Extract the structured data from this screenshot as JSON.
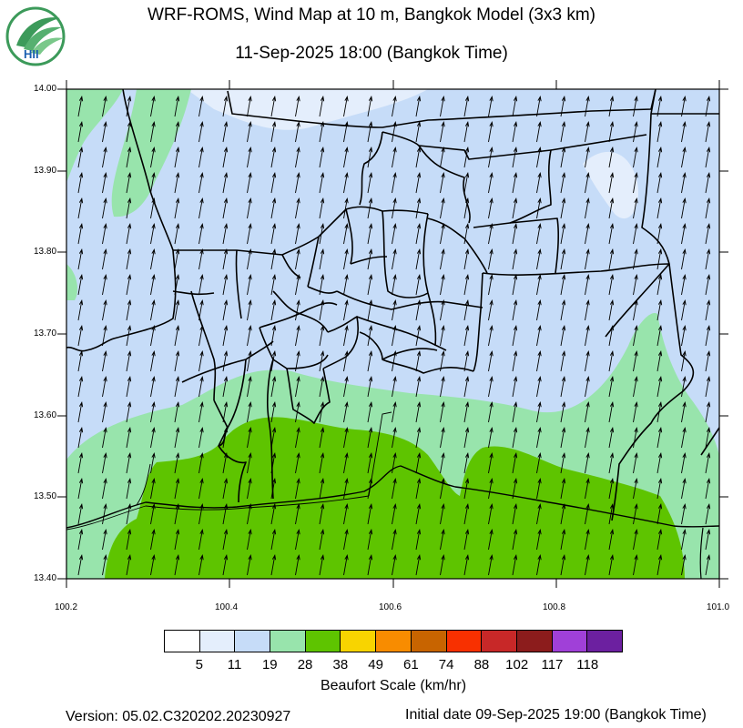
{
  "header": {
    "title": "WRF-ROMS, Wind Map at 10 m, Bangkok Model (3x3 km)",
    "subtitle": "11-Sep-2025 18:00 (Bangkok Time)",
    "logo_text": "HII"
  },
  "map": {
    "y_ticks": [
      "14.00",
      "13.90",
      "13.80",
      "13.70",
      "13.60",
      "13.50",
      "13.40"
    ],
    "x_ticks": [
      "100.2",
      "100.4",
      "100.6",
      "100.8",
      "101.0"
    ],
    "wind_direction": "north-northeast",
    "dominant_fill_colors": [
      "#c6dcf8",
      "#e4eefc",
      "#98e4ac",
      "#5ec400"
    ]
  },
  "legend": {
    "colors": [
      "#ffffff",
      "#e4eefc",
      "#c6dcf8",
      "#98e4ac",
      "#5ec400",
      "#f8d400",
      "#f88c00",
      "#c86400",
      "#f83000",
      "#c82828",
      "#8c1c1c",
      "#a040d8",
      "#6c20a0"
    ],
    "labels": [
      "5",
      "11",
      "19",
      "28",
      "38",
      "49",
      "61",
      "74",
      "88",
      "102",
      "117",
      "118"
    ],
    "title": "Beaufort Scale (km/hr)"
  },
  "footer": {
    "version": "Version: 05.02.C320202.20230927",
    "initial_date": "Initial date 09-Sep-2025 19:00 (Bangkok Time)"
  }
}
